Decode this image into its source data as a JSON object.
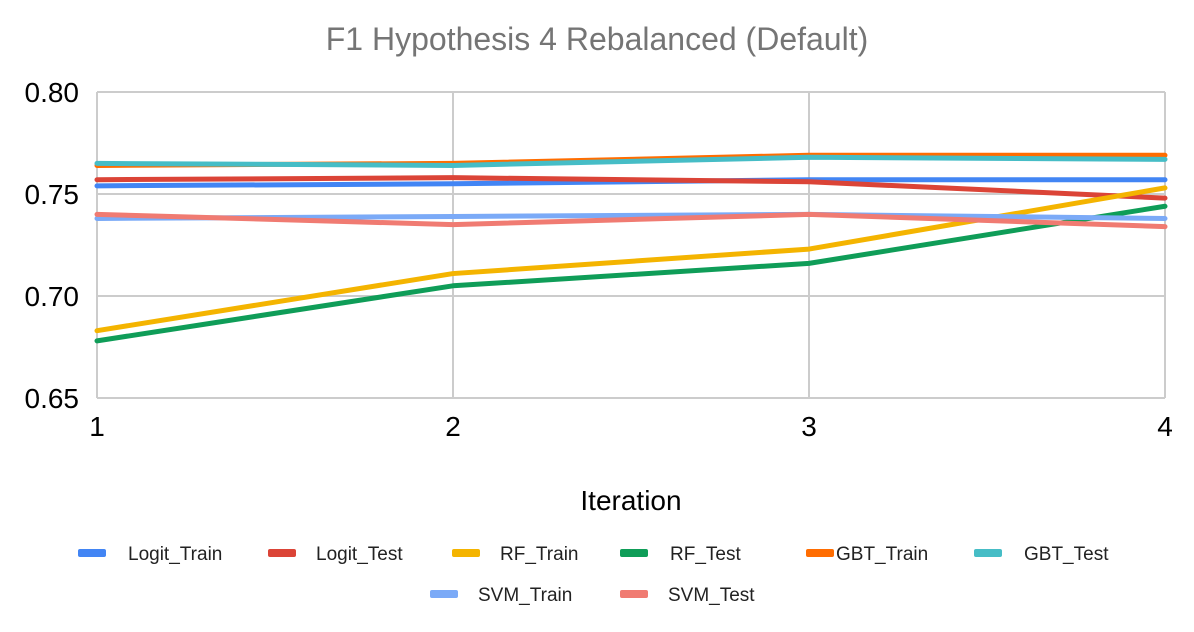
{
  "chart_data": {
    "type": "line",
    "title": "F1 Hypothesis 4 Rebalanced (Default)",
    "xlabel": "Iteration",
    "ylabel": "",
    "x": [
      1,
      2,
      3,
      4
    ],
    "x_tick_labels": [
      "1",
      "2",
      "3",
      "4"
    ],
    "ylim": [
      0.65,
      0.8
    ],
    "y_ticks": [
      0.65,
      0.7,
      0.75,
      0.8
    ],
    "y_tick_labels": [
      "0.65",
      "0.70",
      "0.75",
      "0.80"
    ],
    "grid": true,
    "legend_position": "bottom",
    "series": [
      {
        "name": "Logit_Train",
        "color": "#4285f4",
        "values": [
          0.754,
          0.755,
          0.757,
          0.757
        ]
      },
      {
        "name": "Logit_Test",
        "color": "#db4437",
        "values": [
          0.757,
          0.758,
          0.756,
          0.748
        ]
      },
      {
        "name": "RF_Train",
        "color": "#f4b400",
        "values": [
          0.683,
          0.711,
          0.723,
          0.753
        ]
      },
      {
        "name": "RF_Test",
        "color": "#0f9d58",
        "values": [
          0.678,
          0.705,
          0.716,
          0.744
        ]
      },
      {
        "name": "GBT_Train",
        "color": "#ff6d01",
        "values": [
          0.764,
          0.765,
          0.769,
          0.769
        ]
      },
      {
        "name": "GBT_Test",
        "color": "#46bdc6",
        "values": [
          0.765,
          0.764,
          0.768,
          0.767
        ]
      },
      {
        "name": "SVM_Train",
        "color": "#7baaf7",
        "values": [
          0.738,
          0.739,
          0.74,
          0.738
        ]
      },
      {
        "name": "SVM_Test",
        "color": "#f07b72",
        "values": [
          0.74,
          0.735,
          0.74,
          0.734
        ]
      }
    ]
  }
}
